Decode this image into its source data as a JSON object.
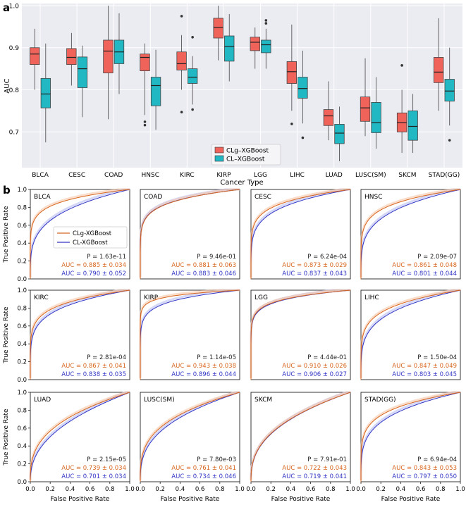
{
  "panel_labels": {
    "a": "a",
    "b": "b"
  },
  "colors": {
    "clg": "#f0635a",
    "clg_line": "#d7661f",
    "cl": "#21b8c4",
    "cl_line": "#3035c4",
    "grid_bg": "#ebebf2",
    "grid_line": "#ffffff"
  },
  "chart_data": [
    {
      "type": "box",
      "title": "",
      "xlabel": "Cancer Type",
      "ylabel": "AUC",
      "ylim": [
        0.615,
        1.005
      ],
      "yticks": [
        "0.7",
        "0.8",
        "0.9",
        "1.0"
      ],
      "ytick_values": [
        0.7,
        0.8,
        0.9,
        1.0
      ],
      "legend": [
        "CLg–XGBoost",
        "CL–XGBoost"
      ],
      "legend_position": "lower-center",
      "categories": [
        "BLCA",
        "CESC",
        "COAD",
        "HNSC",
        "KIRC",
        "KIRP",
        "LGG",
        "LIHC",
        "LUAD",
        "LUSC(SM)",
        "SKCM",
        "STAD(GG)"
      ],
      "series": [
        {
          "name": "CLg–XGBoost",
          "boxes": [
            {
              "min": 0.8,
              "q1": 0.86,
              "median": 0.885,
              "q3": 0.9,
              "max": 0.945,
              "outliers": []
            },
            {
              "min": 0.81,
              "q1": 0.86,
              "median": 0.877,
              "q3": 0.898,
              "max": 0.935,
              "outliers": []
            },
            {
              "min": 0.73,
              "q1": 0.84,
              "median": 0.892,
              "q3": 0.918,
              "max": 1.0,
              "outliers": []
            },
            {
              "min": 0.74,
              "q1": 0.845,
              "median": 0.877,
              "q3": 0.885,
              "max": 0.91,
              "outliers": [
                0.724,
                0.716
              ]
            },
            {
              "min": 0.8,
              "q1": 0.847,
              "median": 0.862,
              "q3": 0.89,
              "max": 0.93,
              "outliers": [
                0.975,
                0.747
              ]
            },
            {
              "min": 0.87,
              "q1": 0.923,
              "median": 0.948,
              "q3": 0.97,
              "max": 1.0,
              "outliers": []
            },
            {
              "min": 0.85,
              "q1": 0.893,
              "median": 0.913,
              "q3": 0.925,
              "max": 0.948,
              "outliers": []
            },
            {
              "min": 0.75,
              "q1": 0.815,
              "median": 0.843,
              "q3": 0.867,
              "max": 0.955,
              "outliers": [
                0.719
              ]
            },
            {
              "min": 0.68,
              "q1": 0.715,
              "median": 0.738,
              "q3": 0.753,
              "max": 0.82,
              "outliers": []
            },
            {
              "min": 0.69,
              "q1": 0.725,
              "median": 0.757,
              "q3": 0.783,
              "max": 0.875,
              "outliers": []
            },
            {
              "min": 0.65,
              "q1": 0.7,
              "median": 0.722,
              "q3": 0.745,
              "max": 0.8,
              "outliers": [
                0.858
              ]
            },
            {
              "min": 0.75,
              "q1": 0.817,
              "median": 0.842,
              "q3": 0.877,
              "max": 0.97,
              "outliers": []
            }
          ]
        },
        {
          "name": "CL–XGBoost",
          "boxes": [
            {
              "min": 0.675,
              "q1": 0.757,
              "median": 0.79,
              "q3": 0.827,
              "max": 0.91,
              "outliers": []
            },
            {
              "min": 0.735,
              "q1": 0.805,
              "median": 0.85,
              "q3": 0.878,
              "max": 0.905,
              "outliers": []
            },
            {
              "min": 0.79,
              "q1": 0.862,
              "median": 0.89,
              "q3": 0.918,
              "max": 0.982,
              "outliers": []
            },
            {
              "min": 0.705,
              "q1": 0.762,
              "median": 0.81,
              "q3": 0.83,
              "max": 0.895,
              "outliers": []
            },
            {
              "min": 0.765,
              "q1": 0.815,
              "median": 0.83,
              "q3": 0.85,
              "max": 0.88,
              "outliers": [
                0.925,
                0.753
              ]
            },
            {
              "min": 0.82,
              "q1": 0.868,
              "median": 0.903,
              "q3": 0.928,
              "max": 0.98,
              "outliers": []
            },
            {
              "min": 0.85,
              "q1": 0.888,
              "median": 0.907,
              "q3": 0.918,
              "max": 0.945,
              "outliers": [
                0.965,
                0.958
              ]
            },
            {
              "min": 0.72,
              "q1": 0.78,
              "median": 0.803,
              "q3": 0.83,
              "max": 0.893,
              "outliers": [
                0.686
              ]
            },
            {
              "min": 0.63,
              "q1": 0.672,
              "median": 0.697,
              "q3": 0.718,
              "max": 0.76,
              "outliers": []
            },
            {
              "min": 0.66,
              "q1": 0.698,
              "median": 0.722,
              "q3": 0.77,
              "max": 0.83,
              "outliers": []
            },
            {
              "min": 0.65,
              "q1": 0.68,
              "median": 0.713,
              "q3": 0.75,
              "max": 0.79,
              "outliers": []
            },
            {
              "min": 0.715,
              "q1": 0.773,
              "median": 0.797,
              "q3": 0.825,
              "max": 0.9,
              "outliers": [
                0.68
              ]
            }
          ]
        }
      ]
    },
    {
      "type": "line",
      "subtype": "roc_grid",
      "xlabel": "False Positive Rate",
      "ylabel": "True Positive Rate",
      "xticks": [
        "0.0",
        "0.2",
        "0.4",
        "0.6",
        "0.8",
        "1.0"
      ],
      "yticks": [
        "0.0",
        "0.2",
        "0.4",
        "0.6",
        "0.8",
        "1.0"
      ],
      "xlim": [
        0,
        1
      ],
      "ylim": [
        0,
        1
      ],
      "legend": [
        "CLg-XGBoost",
        "CL-XGBoost"
      ],
      "panels": [
        {
          "name": "BLCA",
          "p": "P = 1.63e-11",
          "auc_clg": "AUC = 0.885 ± 0.034",
          "auc_cl": "AUC = 0.790 ± 0.052",
          "a_clg": 0.885,
          "a_cl": 0.79
        },
        {
          "name": "COAD",
          "p": "P = 9.46e-01",
          "auc_clg": "AUC = 0.881 ± 0.063",
          "auc_cl": "AUC = 0.883 ± 0.046",
          "a_clg": 0.881,
          "a_cl": 0.883
        },
        {
          "name": "CESC",
          "p": "P = 6.24e-04",
          "auc_clg": "AUC = 0.873 ± 0.029",
          "auc_cl": "AUC = 0.837 ± 0.043",
          "a_clg": 0.873,
          "a_cl": 0.837
        },
        {
          "name": "HNSC",
          "p": "P = 2.09e-07",
          "auc_clg": "AUC = 0.861 ± 0.048",
          "auc_cl": "AUC = 0.801 ± 0.044",
          "a_clg": 0.861,
          "a_cl": 0.801
        },
        {
          "name": "KIRC",
          "p": "P = 2.81e-04",
          "auc_clg": "AUC = 0.867 ± 0.041",
          "auc_cl": "AUC = 0.838 ± 0.035",
          "a_clg": 0.867,
          "a_cl": 0.838
        },
        {
          "name": "KIRP",
          "p": "P = 1.14e-05",
          "auc_clg": "AUC = 0.943 ± 0.038",
          "auc_cl": "AUC = 0.896 ± 0.044",
          "a_clg": 0.943,
          "a_cl": 0.896
        },
        {
          "name": "LGG",
          "p": "P = 4.44e-01",
          "auc_clg": "AUC = 0.910 ± 0.026",
          "auc_cl": "AUC = 0.906 ± 0.027",
          "a_clg": 0.91,
          "a_cl": 0.906
        },
        {
          "name": "LIHC",
          "p": "P = 1.50e-04",
          "auc_clg": "AUC = 0.847 ± 0.049",
          "auc_cl": "AUC = 0.803 ± 0.045",
          "a_clg": 0.847,
          "a_cl": 0.803
        },
        {
          "name": "LUAD",
          "p": "P = 2.15e-05",
          "auc_clg": "AUC = 0.739 ± 0.034",
          "auc_cl": "AUC = 0.701 ± 0.034",
          "a_clg": 0.739,
          "a_cl": 0.701
        },
        {
          "name": "LUSC(SM)",
          "p": "P = 7.80e-03",
          "auc_clg": "AUC = 0.761 ± 0.041",
          "auc_cl": "AUC = 0.734 ± 0.046",
          "a_clg": 0.761,
          "a_cl": 0.734
        },
        {
          "name": "SKCM",
          "p": "P = 7.91e-01",
          "auc_clg": "AUC = 0.722 ± 0.043",
          "auc_cl": "AUC = 0.719 ± 0.041",
          "a_clg": 0.722,
          "a_cl": 0.719
        },
        {
          "name": "STAD(GG)",
          "p": "P = 6.94e-04",
          "auc_clg": "AUC = 0.843 ± 0.053",
          "auc_cl": "AUC = 0.797 ± 0.050",
          "a_clg": 0.843,
          "a_cl": 0.797
        }
      ]
    }
  ]
}
